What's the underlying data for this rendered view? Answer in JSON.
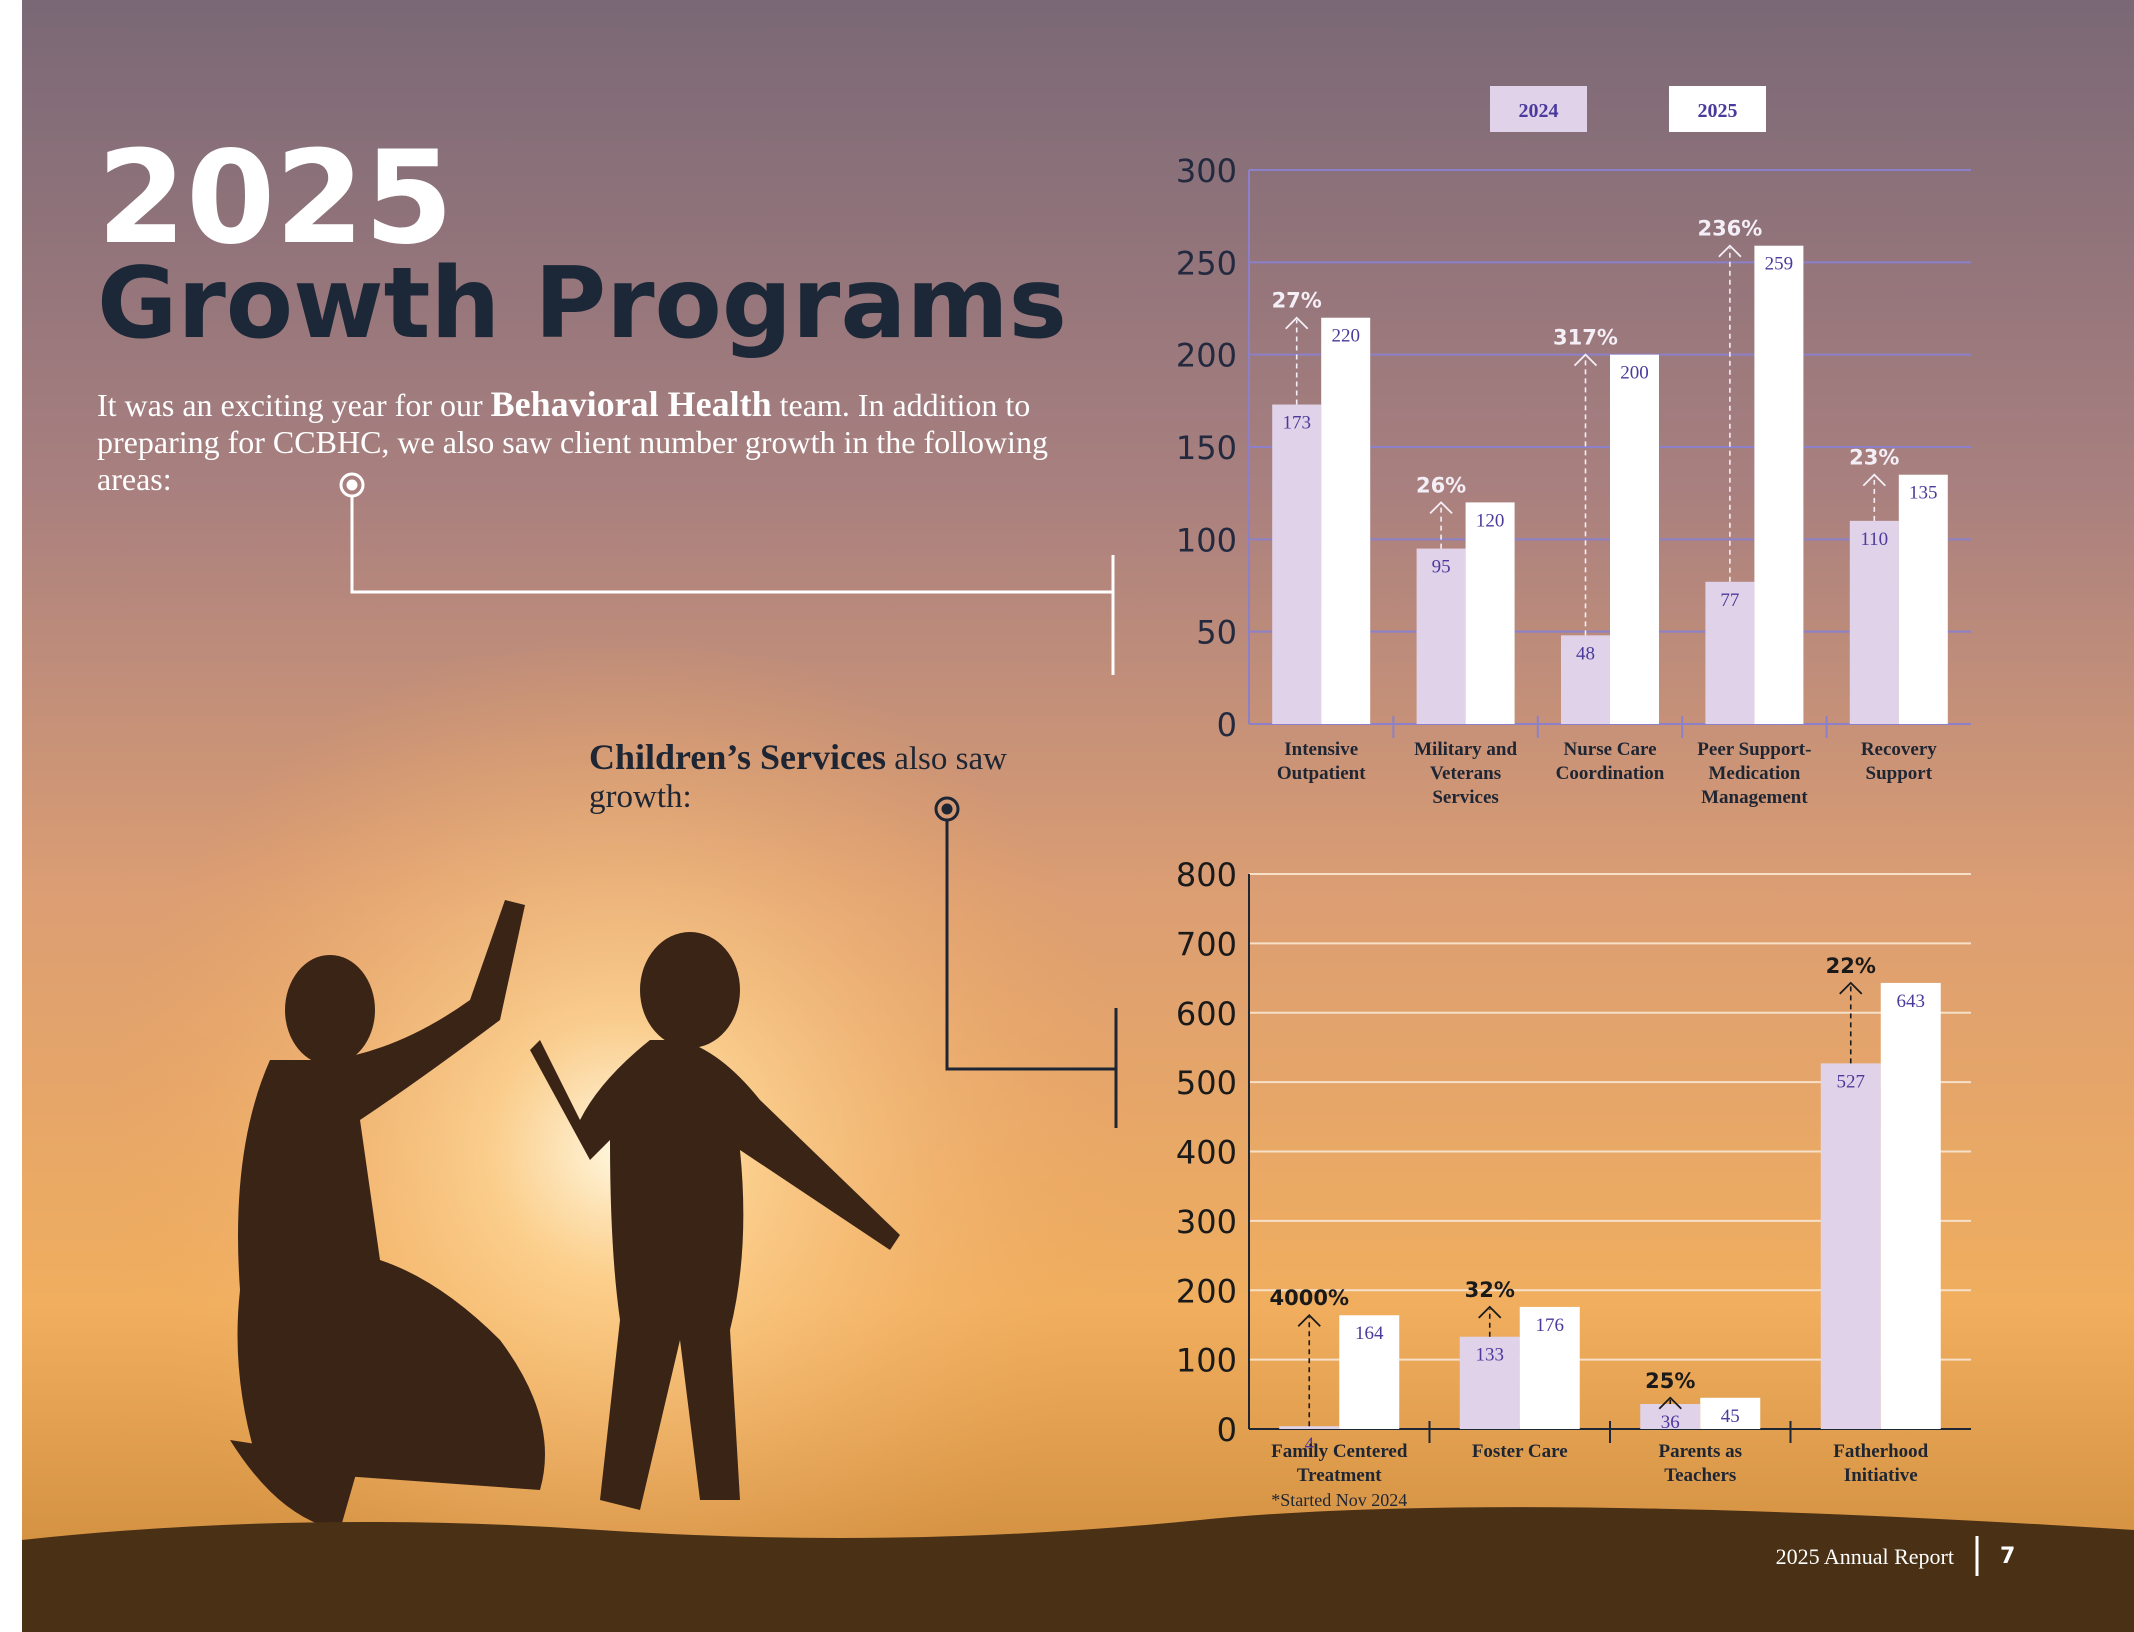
{
  "header": {
    "year": "2025",
    "title": "Growth Programs"
  },
  "intro": {
    "before": "It was an exciting year for our ",
    "bold": "Behavioral Health",
    "after": " team. In addition to preparing for CCBHC, we also saw client number growth in the following areas:"
  },
  "children_intro": {
    "bold": "Children’s Services",
    "after": " also saw growth:"
  },
  "footer": {
    "report": "2025 Annual Report",
    "page": "7"
  },
  "chart_data": [
    {
      "type": "bar",
      "legend": "top",
      "categories": [
        "Intensive Outpatient",
        "Military and Veterans Services",
        "Nurse Care Coordination",
        "Peer Support-Medication Management",
        "Recovery Support"
      ],
      "series": [
        {
          "name": "2024",
          "color": "#e0d3e9",
          "values": [
            173,
            95,
            48,
            77,
            110
          ]
        },
        {
          "name": "2025",
          "color": "#ffffff",
          "values": [
            220,
            120,
            200,
            259,
            135
          ]
        }
      ],
      "growth_labels": [
        "27%",
        "26%",
        "317%",
        "236%",
        "23%"
      ],
      "ylim": [
        0,
        300
      ],
      "yticks": [
        0,
        50,
        100,
        150,
        200,
        250,
        300
      ],
      "grid": true
    },
    {
      "type": "bar",
      "categories": [
        "Family Centered Treatment",
        "Foster Care",
        "Parents as Teachers",
        "Fatherhood Initiative"
      ],
      "series": [
        {
          "color": "#e0d3e9",
          "values": [
            4,
            133,
            36,
            527
          ]
        },
        {
          "color": "#ffffff",
          "values": [
            164,
            176,
            45,
            643
          ]
        }
      ],
      "growth_labels": [
        "4000%",
        "32%",
        "25%",
        "22%"
      ],
      "note": "*Started Nov 2024",
      "ylim": [
        0,
        800
      ],
      "yticks": [
        0,
        100,
        200,
        300,
        400,
        500,
        600,
        700,
        800
      ],
      "grid": true
    }
  ]
}
